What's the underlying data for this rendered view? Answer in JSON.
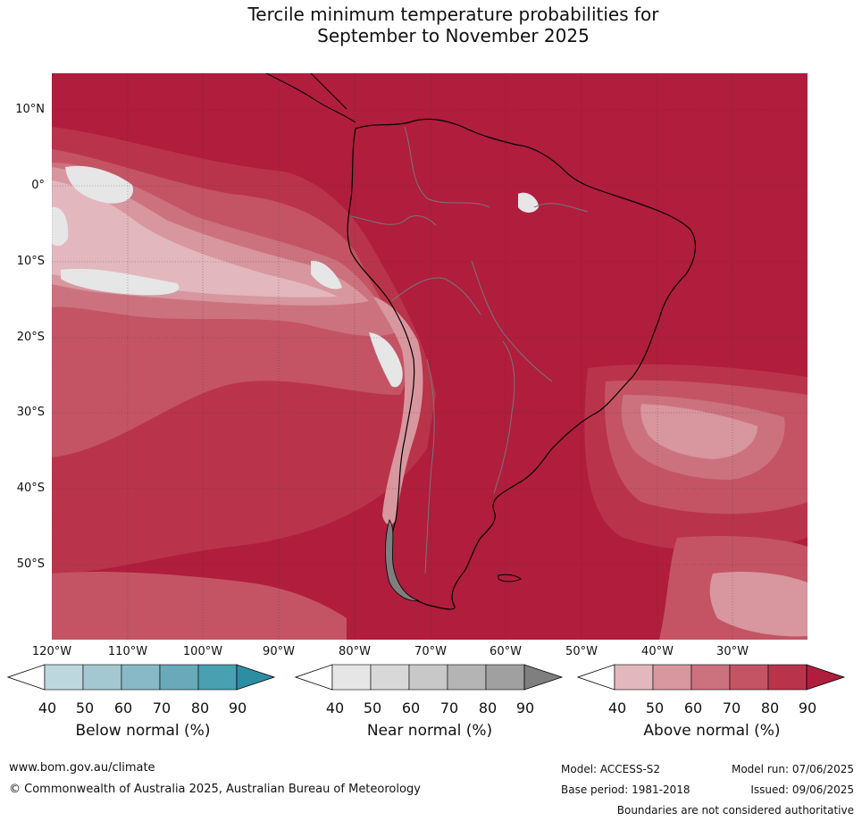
{
  "title_line1": "Tercile minimum temperature probabilities for",
  "title_line2": "September to November 2025",
  "lat_labels": [
    "10°N",
    "0°",
    "10°S",
    "20°S",
    "30°S",
    "40°S",
    "50°S"
  ],
  "lon_labels": [
    "120°W",
    "110°W",
    "100°W",
    "90°W",
    "80°W",
    "70°W",
    "60°W",
    "50°W",
    "40°W",
    "30°W"
  ],
  "legends": {
    "below": {
      "title": "Below normal (%)",
      "ticks": [
        "40",
        "50",
        "60",
        "70",
        "80",
        "90"
      ],
      "colors": [
        "#ffffff",
        "#bdd7de",
        "#a4c8d1",
        "#88b9c6",
        "#6aa9b9",
        "#48a0b1",
        "#2d8ea3"
      ]
    },
    "near": {
      "title": "Near normal (%)",
      "ticks": [
        "40",
        "50",
        "60",
        "70",
        "80",
        "90"
      ],
      "colors": [
        "#ffffff",
        "#e6e6e6",
        "#d8d8d8",
        "#c8c8c8",
        "#b4b4b4",
        "#a0a0a0",
        "#7f7f7f"
      ]
    },
    "above": {
      "title": "Above normal (%)",
      "ticks": [
        "40",
        "50",
        "60",
        "70",
        "80",
        "90"
      ],
      "colors": [
        "#ffffff",
        "#e2b7bd",
        "#d8969f",
        "#cc727f",
        "#c45464",
        "#b9344a",
        "#b01d3d"
      ]
    }
  },
  "footer": {
    "website": "www.bom.gov.au/climate",
    "copyright": "© Commonwealth of Australia 2025, Australian Bureau of Meteorology",
    "model": "Model: ACCESS-S2",
    "base_period": "Base period: 1981-2018",
    "model_run": "Model run: 07/06/2025",
    "issued": "Issued: 09/06/2025",
    "disclaimer": "Boundaries are not considered authoritative"
  }
}
